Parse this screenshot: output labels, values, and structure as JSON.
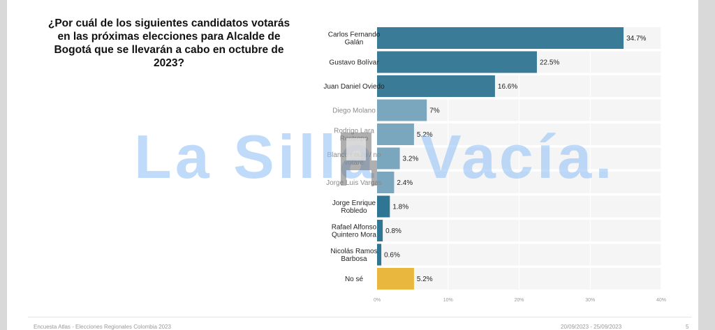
{
  "question": "¿Por cuál de los siguientes candidatos votarás en las próximas elecciones para Alcalde de Bogotá que se llevarán a cabo en octubre de 2023?",
  "watermark": {
    "left": "La Silla",
    "right": "Vacía."
  },
  "footer": {
    "source": "Encuesta Atlas - Elecciones Regionales Colombia 2023",
    "dates": "20/09/2023 - 25/09/2023",
    "page": "5"
  },
  "colors": {
    "dark": "#3a7b98",
    "light": "#7aa6be",
    "mid": "#2f7594",
    "unknown": "#e9b63e",
    "track": "#f5f5f5"
  },
  "chart_data": {
    "type": "bar",
    "orientation": "horizontal",
    "title": "¿Por cuál de los siguientes candidatos votarás en las próximas elecciones para Alcalde de Bogotá que se llevarán a cabo en octubre de 2023?",
    "xlabel": "",
    "ylabel": "",
    "xlim": [
      0,
      40
    ],
    "ticks": [
      "0%",
      "10%",
      "20%",
      "30%",
      "40%"
    ],
    "grid": true,
    "categories": [
      {
        "label": "Carlos Fernando Galán",
        "lines": [
          "Carlos Fernando",
          "Galán"
        ],
        "value": 34.7,
        "value_label": "34.7%",
        "style": "dark"
      },
      {
        "label": "Gustavo Bolívar",
        "lines": [
          "Gustavo Bolívar"
        ],
        "value": 22.5,
        "value_label": "22.5%",
        "style": "dark"
      },
      {
        "label": "Juan Daniel Oviedo",
        "lines": [
          "Juan Daniel Oviedo"
        ],
        "value": 16.6,
        "value_label": "16.6%",
        "style": "dark"
      },
      {
        "label": "Diego Molano",
        "lines": [
          "Diego Molano"
        ],
        "value": 7,
        "value_label": "7%",
        "style": "light"
      },
      {
        "label": "Rodrigo Lara Restrepo",
        "lines": [
          "Rodrigo Lara",
          "Restrepo"
        ],
        "value": 5.2,
        "value_label": "5.2%",
        "style": "light"
      },
      {
        "label": "Blanco / nulo / no votaré",
        "lines": [
          "Blanco / nulo / no",
          "votaré"
        ],
        "value": 3.2,
        "value_label": "3.2%",
        "style": "light"
      },
      {
        "label": "Jorge Luis Vargas",
        "lines": [
          "Jorge Luis Vargas"
        ],
        "value": 2.4,
        "value_label": "2.4%",
        "style": "light"
      },
      {
        "label": "Jorge Enrique Robledo",
        "lines": [
          "Jorge Enrique",
          "Robledo"
        ],
        "value": 1.8,
        "value_label": "1.8%",
        "style": "mid"
      },
      {
        "label": "Rafael Alfonso Quintero Mora",
        "lines": [
          "Rafael Alfonso",
          "Quintero Mora"
        ],
        "value": 0.8,
        "value_label": "0.8%",
        "style": "mid"
      },
      {
        "label": "Nicolás Ramos Barbosa",
        "lines": [
          "Nicolás Ramos",
          "Barbosa"
        ],
        "value": 0.6,
        "value_label": "0.6%",
        "style": "mid"
      },
      {
        "label": "No sé",
        "lines": [
          "No sé"
        ],
        "value": 5.2,
        "value_label": "5.2%",
        "style": "unknown"
      }
    ]
  }
}
